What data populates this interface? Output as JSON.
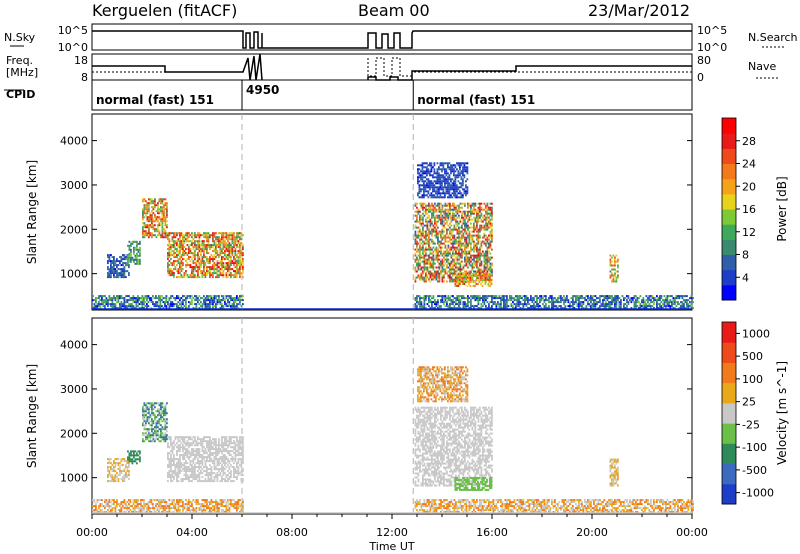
{
  "header": {
    "station": "Kerguelen (fitACF)",
    "beam": "Beam 00",
    "date": "23/Mar/2012"
  },
  "colors": {
    "bg": "#ffffff",
    "line": "#000000",
    "grid": "#b0b0b0",
    "ground": "#0a2ad8"
  },
  "noise_panel": {
    "left_label": "N.Sky",
    "right_label": "N.Search",
    "left_ticks": [
      "10^5",
      "10^0"
    ],
    "right_ticks": [
      "10^5",
      "10^0"
    ]
  },
  "freq_panel": {
    "left_label_1": "Freq.",
    "left_label_2": "[MHz]",
    "right_label": "Nave",
    "left_ticks": [
      "18",
      "8"
    ],
    "right_ticks": [
      "80",
      "0"
    ]
  },
  "cpid_panel": {
    "label": "CPID",
    "segments": [
      {
        "text": "normal (fast) 151",
        "start_hour": 0
      },
      {
        "text": "4950",
        "start_hour": 6
      },
      {
        "text": "normal (fast) 151",
        "start_hour": 12.85
      }
    ]
  },
  "x_axis": {
    "label": "Time UT",
    "range_hours": [
      0,
      24
    ],
    "ticks": [
      "00:00",
      "04:00",
      "08:00",
      "12:00",
      "16:00",
      "20:00",
      "00:00"
    ],
    "tick_hours": [
      0,
      4,
      8,
      12,
      16,
      20,
      24
    ]
  },
  "markers_hours": [
    6,
    12.85
  ],
  "chart_data": [
    {
      "type": "heatmap",
      "name": "power",
      "ylabel": "Slant Range [km]",
      "ylim": [
        180,
        4600
      ],
      "yticks": [
        1000,
        2000,
        3000,
        4000
      ],
      "colorbar": {
        "label": "Power [dB]",
        "range": [
          0,
          32
        ],
        "ticks": [
          "4",
          "8",
          "12",
          "16",
          "20",
          "24",
          "28"
        ],
        "colors": [
          "#0000ff",
          "#1f3ec8",
          "#2f5fa8",
          "#3b8a70",
          "#3fa85a",
          "#7dc936",
          "#e8d21a",
          "#f5a21a",
          "#f27a1c",
          "#ee4a1c",
          "#e81a1a",
          "#ff0000"
        ]
      },
      "regions": [
        {
          "t0": 0.6,
          "t1": 1.5,
          "r0": 900,
          "r1": 1400,
          "v0": 2,
          "v1": 10
        },
        {
          "t0": 1.4,
          "t1": 1.9,
          "r0": 1200,
          "r1": 1700,
          "v0": 6,
          "v1": 16
        },
        {
          "t0": 2.0,
          "t1": 3.0,
          "r0": 1800,
          "r1": 2700,
          "v0": 10,
          "v1": 30
        },
        {
          "t0": 3.0,
          "t1": 6.0,
          "r0": 900,
          "r1": 1900,
          "v0": 10,
          "v1": 30
        },
        {
          "t0": 12.9,
          "t1": 16.0,
          "r0": 800,
          "r1": 2600,
          "v0": 6,
          "v1": 30
        },
        {
          "t0": 14.5,
          "t1": 16.0,
          "r0": 700,
          "r1": 1000,
          "v0": 14,
          "v1": 28
        },
        {
          "t0": 20.7,
          "t1": 21.0,
          "r0": 800,
          "r1": 1400,
          "v0": 10,
          "v1": 26
        },
        {
          "t0": 13.0,
          "t1": 15.0,
          "r0": 2700,
          "r1": 3500,
          "v0": 2,
          "v1": 8
        },
        {
          "t0": 0.0,
          "t1": 6.0,
          "r0": 200,
          "r1": 500,
          "v0": 2,
          "v1": 14
        },
        {
          "t0": 12.9,
          "t1": 24.0,
          "r0": 200,
          "r1": 500,
          "v0": 2,
          "v1": 14
        }
      ]
    },
    {
      "type": "heatmap",
      "name": "velocity",
      "ylabel": "Slant Range [km]",
      "ylim": [
        180,
        4600
      ],
      "yticks": [
        1000,
        2000,
        3000,
        4000
      ],
      "colorbar": {
        "label": "Velocity [m s^-1]",
        "ticks": [
          "1000",
          "500",
          "100",
          "25",
          "-25",
          "-100",
          "-500",
          "-1000"
        ],
        "colors": [
          "#1f3ec8",
          "#3b6ac0",
          "#2f8a5a",
          "#6cc04a",
          "#c8c8c8",
          "#e8a81a",
          "#f07a1c",
          "#ee4a1c",
          "#e81a1a"
        ]
      },
      "regions": [
        {
          "t0": 0.6,
          "t1": 1.5,
          "r0": 900,
          "r1": 1400,
          "v0": 4,
          "v1": 5
        },
        {
          "t0": 1.4,
          "t1": 1.9,
          "r0": 1300,
          "r1": 1600,
          "v0": 2,
          "v1": 2
        },
        {
          "t0": 2.0,
          "t1": 3.0,
          "r0": 1800,
          "r1": 2700,
          "v0": 1,
          "v1": 4
        },
        {
          "t0": 3.0,
          "t1": 6.0,
          "r0": 900,
          "r1": 1900,
          "v0": 4,
          "v1": 4
        },
        {
          "t0": 12.9,
          "t1": 16.0,
          "r0": 800,
          "r1": 2600,
          "v0": 4,
          "v1": 4
        },
        {
          "t0": 14.5,
          "t1": 16.0,
          "r0": 700,
          "r1": 1000,
          "v0": 3,
          "v1": 3
        },
        {
          "t0": 20.7,
          "t1": 21.0,
          "r0": 800,
          "r1": 1400,
          "v0": 4,
          "v1": 5
        },
        {
          "t0": 13.0,
          "t1": 15.0,
          "r0": 2700,
          "r1": 3500,
          "v0": 4,
          "v1": 6
        },
        {
          "t0": 0.0,
          "t1": 6.0,
          "r0": 200,
          "r1": 500,
          "v0": 4,
          "v1": 6
        },
        {
          "t0": 12.9,
          "t1": 24.0,
          "r0": 200,
          "r1": 500,
          "v0": 4,
          "v1": 6
        }
      ]
    }
  ]
}
